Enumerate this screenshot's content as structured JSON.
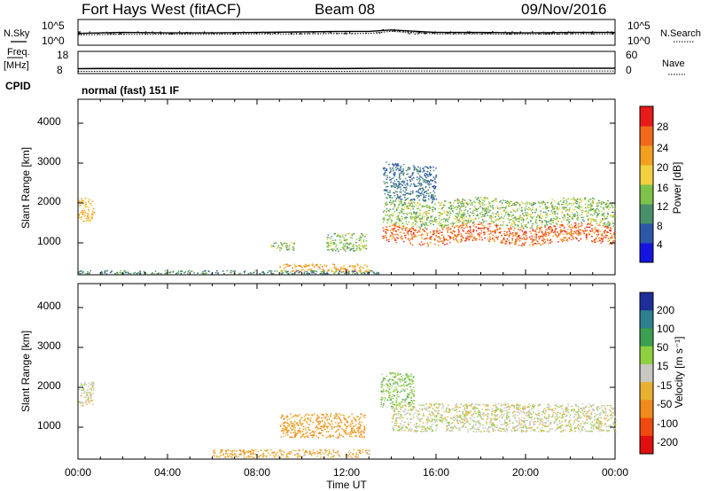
{
  "header": {
    "station": "Fort Hays West (fitACF)",
    "beam": "Beam 08",
    "date": "09/Nov/2016"
  },
  "noise_panel": {
    "left_label": "N.Sky",
    "right_label": "N.Search",
    "right_ticks": [
      "10^5",
      "10^0"
    ],
    "left_ticks": [
      "10^5",
      "10^0"
    ]
  },
  "freq_panel": {
    "left_label_top": "Freq.",
    "left_label_unit": "[MHz]",
    "left_ticks": [
      "18",
      "8"
    ],
    "right_label": "Nave",
    "right_ticks": [
      "60",
      "0"
    ]
  },
  "cpid": {
    "label": "CPID",
    "value": "normal (fast) 151 IF"
  },
  "time_axis": {
    "label": "Time UT",
    "ticks": [
      "00:00",
      "04:00",
      "08:00",
      "12:00",
      "16:00",
      "20:00",
      "00:00"
    ]
  },
  "power_panel": {
    "ylabel": "Slant Range [km]",
    "yticks": [
      "4000",
      "3000",
      "2000",
      "1000"
    ],
    "colorbar_label": "Power [dB]",
    "colorbar_ticks": [
      "28",
      "24",
      "20",
      "16",
      "12",
      "8",
      "4"
    ],
    "colors": [
      "#1414e0",
      "#2e57a8",
      "#4a8f6c",
      "#7fc24a",
      "#f0d040",
      "#f2a020",
      "#f06a1a",
      "#e81a1a"
    ]
  },
  "velocity_panel": {
    "ylabel": "Slant Range [km]",
    "yticks": [
      "4000",
      "3000",
      "2000",
      "1000"
    ],
    "colorbar_label": "Velocity [m s⁻¹]",
    "colorbar_ticks": [
      "200",
      "100",
      "50",
      "15",
      "-15",
      "-50",
      "-100",
      "-200"
    ],
    "colors": [
      "#1e2f9a",
      "#2f7f8f",
      "#3aa050",
      "#8fd040",
      "#c8c8c0",
      "#e8b030",
      "#f08a1a",
      "#f04a10",
      "#e01010"
    ]
  },
  "chart_data": [
    {
      "type": "line",
      "title": "N.Sky / N.Search",
      "x": [
        0,
        2,
        4,
        6,
        8,
        10,
        12,
        13,
        14,
        16,
        18,
        20,
        22,
        24
      ],
      "series": [
        {
          "name": "N.Sky",
          "values": [
            2.2,
            2.4,
            2.3,
            2.3,
            2.4,
            2.5,
            2.6,
            2.6,
            2.9,
            2.4,
            2.4,
            2.3,
            2.4,
            2.4
          ]
        },
        {
          "name": "N.Search",
          "values": [
            1.9,
            2.0,
            2.0,
            2.0,
            2.1,
            2.1,
            2.2,
            2.2,
            2.6,
            2.1,
            2.1,
            2.0,
            2.1,
            2.1
          ]
        }
      ]
    },
    {
      "type": "line",
      "title": "Freq. [MHz] / Nave",
      "x": [
        0,
        1,
        4,
        8,
        12,
        13.5,
        16,
        20,
        24
      ],
      "series": [
        {
          "name": "Freq.",
          "values": [
            10.2,
            10.3,
            10.3,
            10.3,
            10.3,
            10.4,
            10.4,
            10.4,
            10.4
          ]
        },
        {
          "name": "Nave",
          "values": [
            6,
            6,
            6,
            6,
            6,
            7,
            7,
            7,
            7
          ]
        }
      ],
      "ylim": [
        8,
        18
      ]
    },
    {
      "type": "heatmap",
      "title": "Power [dB]",
      "xlim": [
        0,
        24
      ],
      "ylim": [
        200,
        4600
      ],
      "xlabel": "Time UT",
      "ylabel": "Slant Range [km]",
      "clim": [
        0,
        32
      ],
      "regions": [
        {
          "x": [
            0.0,
            0.7
          ],
          "y": [
            1550,
            2150
          ],
          "value": 20
        },
        {
          "x": [
            8.6,
            9.7
          ],
          "y": [
            820,
            1020
          ],
          "value": 14
        },
        {
          "x": [
            11.1,
            12.9
          ],
          "y": [
            800,
            1250
          ],
          "value": 14
        },
        {
          "x": [
            9.0,
            13.0
          ],
          "y": [
            280,
            480
          ],
          "value": 22
        },
        {
          "x": [
            0.0,
            13.5
          ],
          "y": [
            220,
            320
          ],
          "value": 10
        },
        {
          "x": [
            13.6,
            24.0
          ],
          "y": [
            1000,
            1450
          ],
          "value": 26
        },
        {
          "x": [
            13.6,
            24.0
          ],
          "y": [
            1450,
            2100
          ],
          "value": 14
        },
        {
          "x": [
            13.6,
            16.0
          ],
          "y": [
            2100,
            3000
          ],
          "value": 8
        }
      ]
    },
    {
      "type": "heatmap",
      "title": "Velocity [m s⁻¹]",
      "xlim": [
        0,
        24
      ],
      "ylim": [
        200,
        4600
      ],
      "xlabel": "Time UT",
      "ylabel": "Slant Range [km]",
      "clim": [
        -250,
        250
      ],
      "regions": [
        {
          "x": [
            0.0,
            0.7
          ],
          "y": [
            1550,
            2150
          ],
          "value": 0
        },
        {
          "x": [
            6.0,
            13.0
          ],
          "y": [
            250,
            450
          ],
          "value": -40
        },
        {
          "x": [
            9.0,
            12.8
          ],
          "y": [
            750,
            1350
          ],
          "value": -50
        },
        {
          "x": [
            13.5,
            15.0
          ],
          "y": [
            1500,
            2400
          ],
          "value": 30
        },
        {
          "x": [
            14.0,
            24.0
          ],
          "y": [
            900,
            1600
          ],
          "value": 0
        }
      ]
    }
  ]
}
